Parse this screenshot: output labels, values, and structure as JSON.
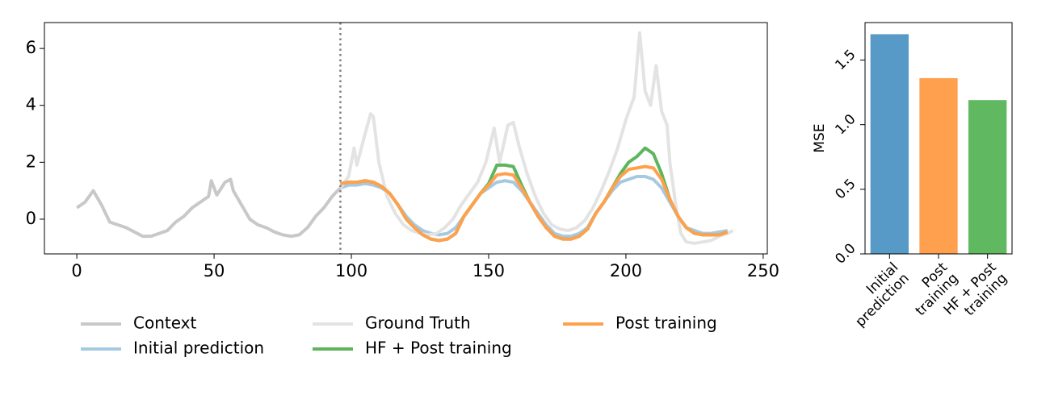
{
  "chart_data": [
    {
      "type": "line",
      "xlim": [
        -11.8,
        251.5
      ],
      "ylim": [
        -1.22,
        6.91
      ],
      "xticks": [
        0,
        50,
        100,
        150,
        200,
        250
      ],
      "yticks": [
        0,
        2,
        4,
        6
      ],
      "vline": 96,
      "legend": "bottom",
      "series": [
        {
          "name": "Context",
          "color": "#c8c8c8",
          "x": [
            0,
            3,
            6,
            9,
            12,
            15,
            18,
            21,
            24,
            27,
            30,
            33,
            36,
            39,
            42,
            45,
            48,
            49,
            51,
            54,
            56,
            57,
            60,
            63,
            66,
            69,
            72,
            75,
            78,
            81,
            84,
            87,
            90,
            93,
            96
          ],
          "values": [
            0.4,
            0.6,
            1.0,
            0.5,
            -0.1,
            -0.2,
            -0.3,
            -0.45,
            -0.6,
            -0.6,
            -0.5,
            -0.4,
            -0.1,
            0.1,
            0.4,
            0.6,
            0.8,
            1.35,
            0.85,
            1.3,
            1.4,
            1.0,
            0.5,
            0.0,
            -0.2,
            -0.3,
            -0.45,
            -0.55,
            -0.6,
            -0.55,
            -0.3,
            0.1,
            0.4,
            0.8,
            1.1
          ]
        },
        {
          "name": "Initial prediction",
          "color": "#a6c9e2",
          "x": [
            96,
            99,
            102,
            105,
            108,
            111,
            114,
            117,
            120,
            123,
            126,
            129,
            132,
            135,
            138,
            141,
            144,
            147,
            150,
            153,
            156,
            159,
            162,
            165,
            168,
            171,
            174,
            177,
            180,
            183,
            186,
            189,
            192,
            195,
            198,
            201,
            204,
            207,
            210,
            213,
            216,
            219,
            222,
            225,
            228,
            231,
            234,
            237
          ],
          "values": [
            1.1,
            1.2,
            1.2,
            1.25,
            1.2,
            1.1,
            0.9,
            0.5,
            0.1,
            -0.2,
            -0.4,
            -0.5,
            -0.55,
            -0.5,
            -0.3,
            0.1,
            0.5,
            0.9,
            1.1,
            1.3,
            1.35,
            1.3,
            1.0,
            0.6,
            0.2,
            -0.2,
            -0.5,
            -0.6,
            -0.6,
            -0.5,
            -0.3,
            0.2,
            0.6,
            1.0,
            1.3,
            1.4,
            1.5,
            1.5,
            1.4,
            1.1,
            0.6,
            0.1,
            -0.3,
            -0.4,
            -0.5,
            -0.5,
            -0.45,
            -0.4
          ]
        },
        {
          "name": "Ground Truth",
          "color": "#e3e3e3",
          "x": [
            96,
            99,
            101,
            102,
            105,
            107,
            108,
            110,
            113,
            116,
            119,
            122,
            125,
            128,
            131,
            134,
            137,
            140,
            143,
            146,
            149,
            152,
            154,
            157,
            159,
            161,
            164,
            167,
            170,
            173,
            176,
            179,
            182,
            185,
            188,
            191,
            194,
            197,
            200,
            203,
            205,
            207,
            209,
            211,
            213,
            215,
            216,
            218,
            220,
            222,
            225,
            228,
            231,
            234,
            237,
            239
          ],
          "values": [
            1.1,
            1.5,
            2.5,
            1.9,
            3.0,
            3.7,
            3.6,
            2.0,
            0.8,
            0.2,
            -0.2,
            -0.4,
            -0.5,
            -0.55,
            -0.5,
            -0.3,
            0.0,
            0.5,
            0.9,
            1.3,
            2.0,
            3.2,
            2.0,
            3.3,
            3.4,
            2.6,
            1.6,
            0.8,
            0.2,
            -0.2,
            -0.35,
            -0.4,
            -0.3,
            -0.05,
            0.4,
            1.0,
            1.7,
            2.5,
            3.5,
            4.3,
            6.55,
            4.5,
            4.0,
            5.4,
            3.8,
            3.3,
            2.0,
            0.6,
            -0.5,
            -0.8,
            -0.85,
            -0.8,
            -0.75,
            -0.6,
            -0.5,
            -0.4
          ]
        },
        {
          "name": "HF + Post training",
          "color": "#5db55d",
          "x": [
            96,
            99,
            102,
            105,
            108,
            111,
            114,
            117,
            120,
            123,
            126,
            129,
            132,
            135,
            138,
            141,
            144,
            147,
            150,
            153,
            156,
            159,
            162,
            165,
            168,
            171,
            174,
            177,
            180,
            183,
            186,
            189,
            192,
            195,
            198,
            201,
            204,
            207,
            210,
            213,
            216,
            219,
            222,
            225,
            228,
            231,
            234,
            237
          ],
          "values": [
            1.25,
            1.3,
            1.3,
            1.35,
            1.3,
            1.15,
            0.9,
            0.5,
            0.0,
            -0.3,
            -0.55,
            -0.7,
            -0.75,
            -0.7,
            -0.5,
            0.1,
            0.5,
            0.9,
            1.25,
            1.9,
            1.9,
            1.85,
            1.2,
            0.6,
            0.1,
            -0.3,
            -0.6,
            -0.7,
            -0.7,
            -0.6,
            -0.35,
            0.2,
            0.6,
            1.1,
            1.6,
            2.0,
            2.2,
            2.5,
            2.3,
            1.6,
            0.7,
            0.1,
            -0.3,
            -0.5,
            -0.55,
            -0.55,
            -0.55,
            -0.45
          ]
        },
        {
          "name": "Post training",
          "color": "#ffa04c",
          "x": [
            96,
            99,
            102,
            105,
            108,
            111,
            114,
            117,
            120,
            123,
            126,
            129,
            132,
            135,
            138,
            141,
            144,
            147,
            150,
            153,
            156,
            159,
            162,
            165,
            168,
            171,
            174,
            177,
            180,
            183,
            186,
            189,
            192,
            195,
            198,
            201,
            204,
            207,
            210,
            213,
            216,
            219,
            222,
            225,
            228,
            231,
            234,
            237
          ],
          "values": [
            1.25,
            1.3,
            1.3,
            1.35,
            1.3,
            1.15,
            0.9,
            0.5,
            0.0,
            -0.3,
            -0.55,
            -0.7,
            -0.75,
            -0.7,
            -0.5,
            0.1,
            0.5,
            0.9,
            1.2,
            1.55,
            1.6,
            1.55,
            1.1,
            0.6,
            0.1,
            -0.3,
            -0.6,
            -0.7,
            -0.7,
            -0.6,
            -0.35,
            0.2,
            0.6,
            1.1,
            1.5,
            1.75,
            1.8,
            1.85,
            1.8,
            1.4,
            0.7,
            0.1,
            -0.3,
            -0.5,
            -0.55,
            -0.55,
            -0.55,
            -0.45
          ]
        }
      ]
    },
    {
      "type": "bar",
      "y_label": "MSE",
      "categories": [
        "Initial\nprediction",
        "Post\ntraining",
        "HF + Post\ntraining"
      ],
      "values": [
        1.7,
        1.36,
        1.19
      ],
      "colors": [
        "#589ac7",
        "#ffa04f",
        "#60b860"
      ],
      "ylim": [
        0,
        1.79
      ],
      "yticks": [
        {
          "value": 0,
          "label": "0.0"
        },
        {
          "value": 0.5,
          "label": "0.5"
        },
        {
          "value": 1,
          "label": "1.0"
        },
        {
          "value": 1.5,
          "label": "1.5"
        }
      ]
    }
  ]
}
